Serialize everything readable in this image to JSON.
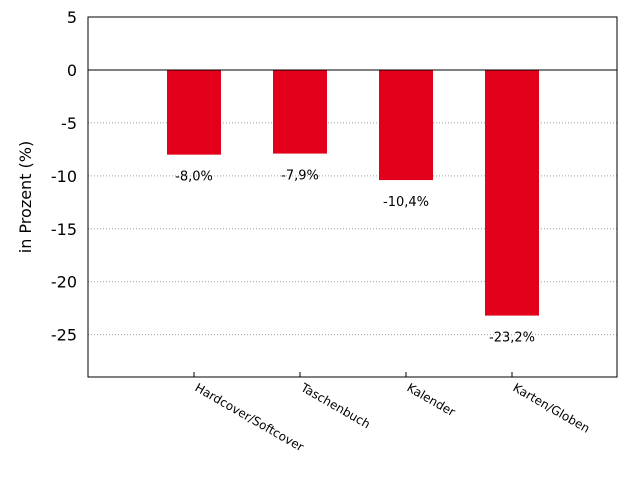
{
  "chart_data": {
    "type": "bar",
    "ylabel": "in Prozent (%)",
    "categories": [
      "Hardcover/Softcover",
      "Taschenbuch",
      "Kalender",
      "Karten/Globen"
    ],
    "values": [
      -8.0,
      -7.9,
      -10.4,
      -23.2
    ],
    "data_labels": [
      "-8,0%",
      "-7,9%",
      "-10,4%",
      "-23,2%"
    ],
    "ylim": [
      -29,
      5
    ],
    "yticks": [
      5,
      0,
      -5,
      -10,
      -15,
      -20,
      -25
    ],
    "grid": "horizontal dotted",
    "bar_color": "#e2001a"
  }
}
